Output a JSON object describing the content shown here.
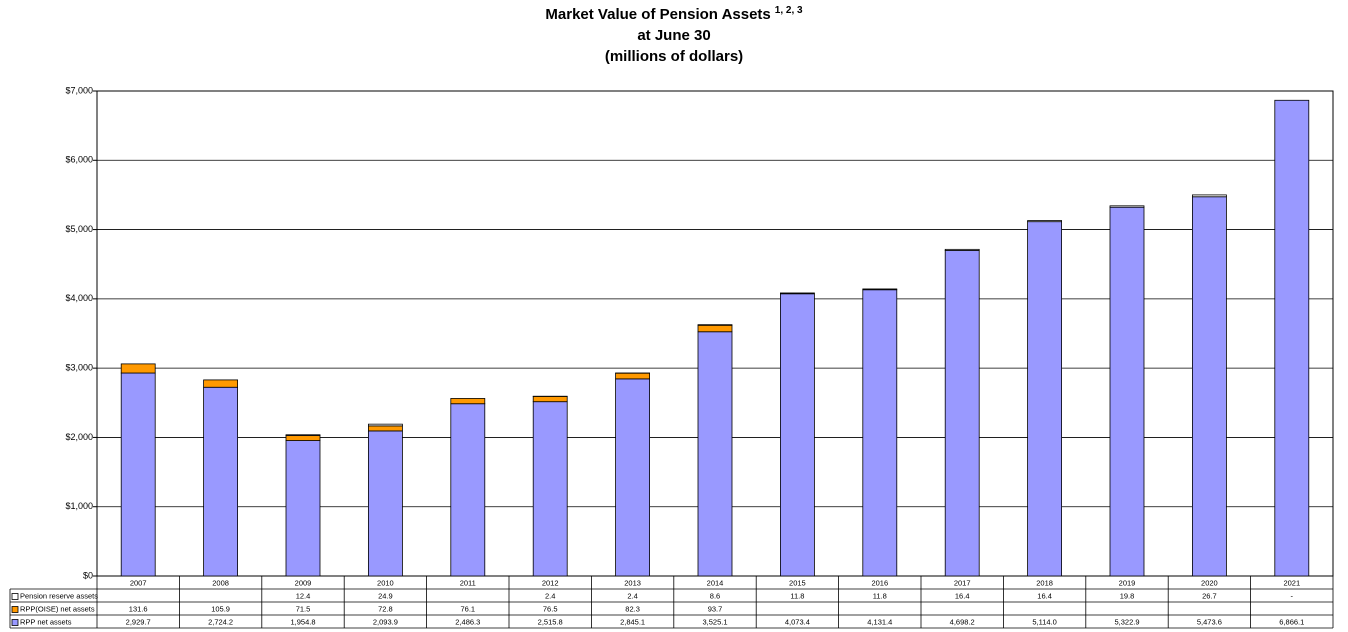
{
  "chart_data": {
    "type": "bar",
    "title": [
      "Market Value of Pension Assets",
      "at June 30",
      "(millions of dollars)"
    ],
    "title_note": "1, 2, 3",
    "categories": [
      "2007",
      "2008",
      "2009",
      "2010",
      "2011",
      "2012",
      "2013",
      "2014",
      "2015",
      "2016",
      "2017",
      "2018",
      "2019",
      "2020",
      "2021"
    ],
    "series": [
      {
        "name": "Pension reserve assets",
        "color": "#ffffff",
        "values": [
          null,
          null,
          12.4,
          24.9,
          null,
          2.4,
          2.4,
          8.6,
          11.8,
          11.8,
          16.4,
          16.4,
          19.8,
          26.7,
          0
        ],
        "value_labels": [
          null,
          null,
          "12.4",
          "24.9",
          null,
          "2.4",
          "2.4",
          "8.6",
          "11.8",
          "11.8",
          "16.4",
          "16.4",
          "19.8",
          "26.7",
          "-"
        ]
      },
      {
        "name": "RPP(OISE) net assets",
        "color": "#ff9900",
        "values": [
          131.6,
          105.9,
          71.5,
          72.8,
          76.1,
          76.5,
          82.3,
          93.7,
          null,
          null,
          null,
          null,
          null,
          null,
          null
        ],
        "value_labels": [
          "131.6",
          "105.9",
          "71.5",
          "72.8",
          "76.1",
          "76.5",
          "82.3",
          "93.7",
          null,
          null,
          null,
          null,
          null,
          null,
          null
        ]
      },
      {
        "name": "RPP net assets",
        "color": "#9999ff",
        "values": [
          2929.7,
          2724.2,
          1954.8,
          2093.9,
          2486.3,
          2515.8,
          2845.1,
          3525.1,
          4073.4,
          4131.4,
          4698.2,
          5114.0,
          5322.9,
          5473.6,
          6866.1
        ],
        "value_labels": [
          "2,929.7",
          "2,724.2",
          "1,954.8",
          "2,093.9",
          "2,486.3",
          "2,515.8",
          "2,845.1",
          "3,525.1",
          "4,073.4",
          "4,131.4",
          "4,698.2",
          "5,114.0",
          "5,322.9",
          "5,473.6",
          "6,866.1"
        ]
      }
    ],
    "ylim": [
      0,
      7000
    ],
    "yticks": [
      {
        "value": 0,
        "label": "$0"
      },
      {
        "value": 1000,
        "label": "$1,000"
      },
      {
        "value": 2000,
        "label": "$2,000"
      },
      {
        "value": 3000,
        "label": "$3,000"
      },
      {
        "value": 4000,
        "label": "$4,000"
      },
      {
        "value": 5000,
        "label": "$5,000"
      },
      {
        "value": 6000,
        "label": "$6,000"
      },
      {
        "value": 7000,
        "label": "$7,000"
      }
    ],
    "grid": true
  }
}
